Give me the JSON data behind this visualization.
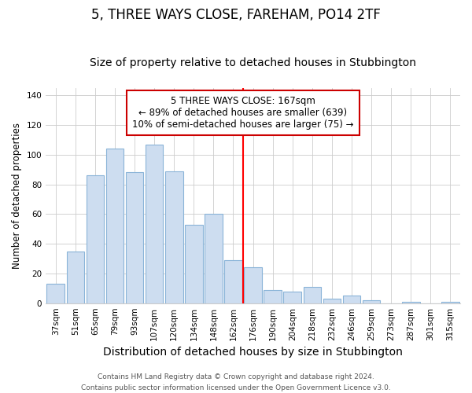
{
  "title": "5, THREE WAYS CLOSE, FAREHAM, PO14 2TF",
  "subtitle": "Size of property relative to detached houses in Stubbington",
  "xlabel": "Distribution of detached houses by size in Stubbington",
  "ylabel": "Number of detached properties",
  "bar_labels": [
    "37sqm",
    "51sqm",
    "65sqm",
    "79sqm",
    "93sqm",
    "107sqm",
    "120sqm",
    "134sqm",
    "148sqm",
    "162sqm",
    "176sqm",
    "190sqm",
    "204sqm",
    "218sqm",
    "232sqm",
    "246sqm",
    "259sqm",
    "273sqm",
    "287sqm",
    "301sqm",
    "315sqm"
  ],
  "bar_values": [
    13,
    35,
    86,
    104,
    88,
    107,
    89,
    53,
    60,
    29,
    24,
    9,
    8,
    11,
    3,
    5,
    2,
    0,
    1,
    0,
    1
  ],
  "bar_color": "#cdddf0",
  "bar_edge_color": "#8ab4d8",
  "grid_color": "#cccccc",
  "vline_x_idx": 9.5,
  "vline_color": "red",
  "annotation_line1": "5 THREE WAYS CLOSE: 167sqm",
  "annotation_line2": "← 89% of detached houses are smaller (639)",
  "annotation_line3": "10% of semi-detached houses are larger (75) →",
  "annotation_box_edge_color": "#cc0000",
  "annotation_box_facecolor": "white",
  "ylim": [
    0,
    145
  ],
  "yticks": [
    0,
    20,
    40,
    60,
    80,
    100,
    120,
    140
  ],
  "footer_line1": "Contains HM Land Registry data © Crown copyright and database right 2024.",
  "footer_line2": "Contains public sector information licensed under the Open Government Licence v3.0.",
  "title_fontsize": 12,
  "subtitle_fontsize": 10,
  "xlabel_fontsize": 10,
  "ylabel_fontsize": 8.5,
  "tick_fontsize": 7.5,
  "footer_fontsize": 6.5,
  "annotation_fontsize": 8.5
}
